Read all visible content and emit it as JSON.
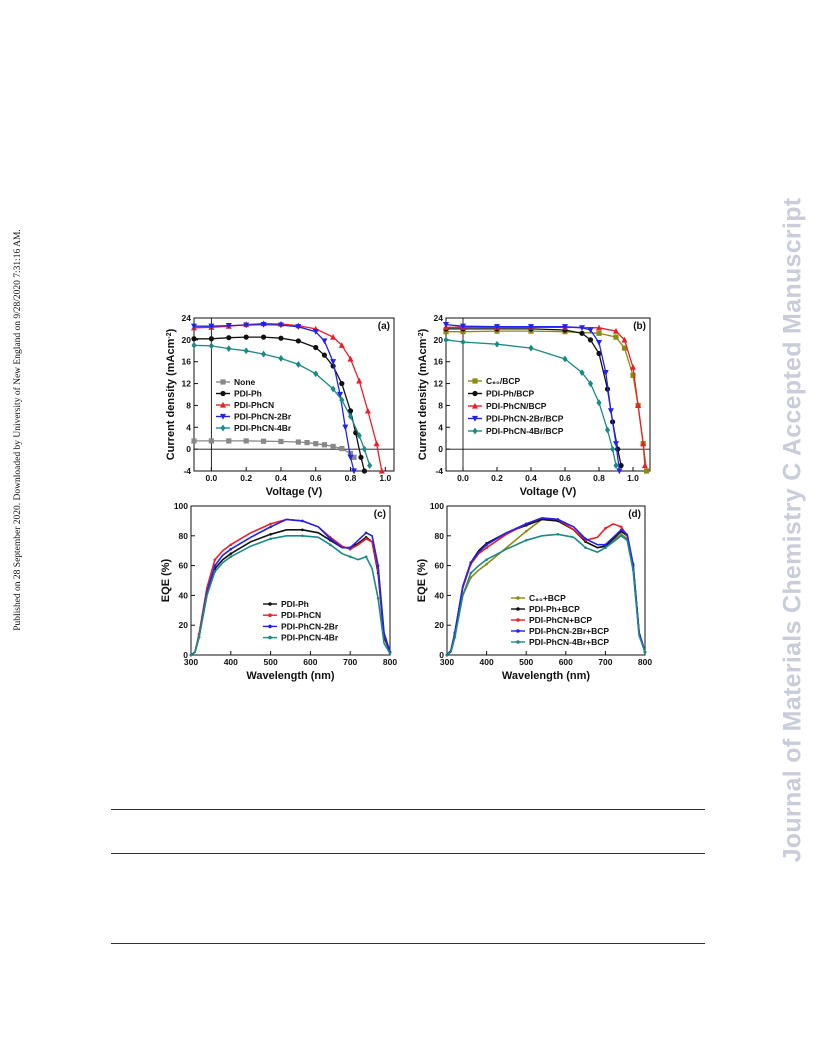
{
  "side_note": "Published on 28 September 2020. Downloaded by University of New England on 9/28/2020 7:31:16 AM.",
  "watermark": "Journal of Materials Chemistry C Accepted Manuscript",
  "colors": {
    "None": "#888888",
    "PDI-Ph": "#111111",
    "PDI-PhCN": "#e8202a",
    "PDI-PhCN-2Br": "#2222ee",
    "PDI-PhCN-4Br": "#1b8a87",
    "C60": "#8c8a12"
  },
  "chart_data": [
    {
      "panel": "(a)",
      "type": "line",
      "xlabel": "Voltage (V)",
      "ylabel": "Current density (mAcm⁻²)",
      "xlim": [
        -0.1,
        1.05
      ],
      "ylim": [
        -4,
        24
      ],
      "xticks": [
        0.0,
        0.2,
        0.4,
        0.6,
        0.8,
        1.0
      ],
      "xtick_labels": [
        "0.0",
        "0.2",
        "0.4",
        "0.6",
        "0.8",
        "1.0"
      ],
      "yticks": [
        -4,
        0,
        4,
        8,
        12,
        16,
        20,
        24
      ],
      "legend_position": "bottom-left",
      "series": [
        {
          "name": "None",
          "color": "#888888",
          "marker": "square",
          "x": [
            -0.1,
            0.0,
            0.1,
            0.2,
            0.3,
            0.4,
            0.5,
            0.55,
            0.6,
            0.65,
            0.7,
            0.75,
            0.8,
            0.82
          ],
          "y": [
            1.5,
            1.5,
            1.5,
            1.5,
            1.45,
            1.4,
            1.3,
            1.2,
            1.0,
            0.8,
            0.5,
            0.1,
            -0.8,
            -1.5
          ]
        },
        {
          "name": "PDI-Ph",
          "color": "#111111",
          "marker": "circle",
          "x": [
            -0.1,
            0.0,
            0.1,
            0.2,
            0.3,
            0.4,
            0.5,
            0.6,
            0.65,
            0.7,
            0.75,
            0.8,
            0.83,
            0.86,
            0.88
          ],
          "y": [
            20.2,
            20.2,
            20.4,
            20.5,
            20.5,
            20.3,
            19.8,
            18.6,
            17.2,
            15.2,
            12.0,
            7.0,
            3.0,
            -1.5,
            -4.0
          ]
        },
        {
          "name": "PDI-PhCN",
          "color": "#e8202a",
          "marker": "triangle-up",
          "x": [
            -0.1,
            0.0,
            0.1,
            0.2,
            0.3,
            0.4,
            0.5,
            0.6,
            0.7,
            0.75,
            0.8,
            0.85,
            0.9,
            0.95,
            0.98
          ],
          "y": [
            22.2,
            22.3,
            22.5,
            22.8,
            23.0,
            22.9,
            22.6,
            22.0,
            20.5,
            19.0,
            16.5,
            12.5,
            7.0,
            1.0,
            -4.0
          ]
        },
        {
          "name": "PDI-PhCN-2Br",
          "color": "#2222ee",
          "marker": "triangle-down",
          "x": [
            -0.1,
            0.0,
            0.1,
            0.2,
            0.3,
            0.4,
            0.5,
            0.6,
            0.65,
            0.7,
            0.74,
            0.77,
            0.8,
            0.82
          ],
          "y": [
            22.5,
            22.5,
            22.6,
            22.7,
            22.8,
            22.7,
            22.4,
            21.5,
            19.8,
            16.0,
            10.0,
            4.0,
            -1.5,
            -4.0
          ]
        },
        {
          "name": "PDI-PhCN-4Br",
          "color": "#1b8a87",
          "marker": "diamond",
          "x": [
            -0.1,
            0.0,
            0.1,
            0.2,
            0.3,
            0.4,
            0.5,
            0.6,
            0.7,
            0.75,
            0.8,
            0.85,
            0.88,
            0.91
          ],
          "y": [
            19.0,
            18.9,
            18.4,
            18.0,
            17.4,
            16.6,
            15.5,
            13.8,
            11.0,
            9.0,
            6.0,
            2.5,
            0.0,
            -3.0
          ]
        }
      ]
    },
    {
      "panel": "(b)",
      "type": "line",
      "xlabel": "Voltage (V)",
      "ylabel": "Current density (mAcm⁻²)",
      "xlim": [
        -0.1,
        1.1
      ],
      "ylim": [
        -4,
        24
      ],
      "xticks": [
        0.0,
        0.2,
        0.4,
        0.6,
        0.8,
        1.0
      ],
      "xtick_labels": [
        "0.0",
        "0.2",
        "0.4",
        "0.6",
        "0.8",
        "1.0"
      ],
      "yticks": [
        -4,
        0,
        4,
        8,
        12,
        16,
        20,
        24
      ],
      "legend_position": "bottom-left",
      "series": [
        {
          "name": "C₆₀/BCP",
          "color": "#8c8a12",
          "marker": "square",
          "x": [
            -0.1,
            0.0,
            0.2,
            0.4,
            0.6,
            0.8,
            0.9,
            0.95,
            1.0,
            1.03,
            1.06,
            1.08
          ],
          "y": [
            21.5,
            21.5,
            21.6,
            21.6,
            21.5,
            21.2,
            20.5,
            18.5,
            13.5,
            8.0,
            1.0,
            -4.0
          ]
        },
        {
          "name": "PDI-Ph/BCP",
          "color": "#111111",
          "marker": "circle",
          "x": [
            -0.1,
            0.0,
            0.2,
            0.4,
            0.6,
            0.7,
            0.75,
            0.8,
            0.85,
            0.88,
            0.91,
            0.93
          ],
          "y": [
            22.0,
            22.0,
            22.0,
            22.0,
            21.8,
            21.2,
            20.0,
            17.5,
            11.0,
            5.0,
            0.0,
            -3.0
          ]
        },
        {
          "name": "PDI-PhCN/BCP",
          "color": "#e8202a",
          "marker": "triangle-up",
          "x": [
            -0.1,
            0.0,
            0.2,
            0.4,
            0.6,
            0.8,
            0.9,
            0.95,
            1.0,
            1.03,
            1.06,
            1.07
          ],
          "y": [
            22.3,
            22.3,
            22.3,
            22.3,
            22.3,
            22.2,
            21.6,
            20.0,
            15.0,
            8.0,
            1.0,
            -3.0
          ]
        },
        {
          "name": "PDI-PhCN-2Br/BCP",
          "color": "#2222ee",
          "marker": "triangle-down",
          "x": [
            -0.1,
            0.0,
            0.2,
            0.4,
            0.6,
            0.7,
            0.75,
            0.8,
            0.84,
            0.87,
            0.9,
            0.92
          ],
          "y": [
            22.8,
            22.5,
            22.4,
            22.4,
            22.4,
            22.2,
            21.8,
            19.5,
            14.0,
            7.0,
            1.0,
            -4.0
          ]
        },
        {
          "name": "PDI-PhCN-4Br/BCP",
          "color": "#1b8a87",
          "marker": "diamond",
          "x": [
            -0.1,
            0.0,
            0.2,
            0.4,
            0.6,
            0.7,
            0.75,
            0.8,
            0.85,
            0.88,
            0.9
          ],
          "y": [
            20.0,
            19.6,
            19.2,
            18.5,
            16.5,
            14.0,
            12.0,
            8.5,
            3.5,
            0.0,
            -3.0
          ]
        }
      ]
    },
    {
      "panel": "(c)",
      "type": "line",
      "xlabel": "Wavelength (nm)",
      "ylabel": "EQE (%)",
      "xlim": [
        300,
        800
      ],
      "ylim": [
        0,
        100
      ],
      "xticks": [
        300,
        400,
        500,
        600,
        700,
        800
      ],
      "xtick_labels": [
        "300",
        "400",
        "500",
        "600",
        "700",
        "800"
      ],
      "yticks": [
        0,
        20,
        40,
        60,
        80,
        100
      ],
      "legend_position": "bottom-center",
      "series": [
        {
          "name": "PDI-Ph",
          "color": "#111111",
          "marker": "none",
          "x": [
            300,
            310,
            320,
            340,
            360,
            380,
            400,
            450,
            500,
            540,
            580,
            620,
            650,
            680,
            700,
            720,
            740,
            755,
            770,
            785,
            800
          ],
          "y": [
            0,
            2,
            12,
            40,
            58,
            64,
            68,
            76,
            81,
            84,
            84,
            82,
            77,
            72,
            72,
            75,
            79,
            76,
            55,
            12,
            2
          ]
        },
        {
          "name": "PDI-PhCN",
          "color": "#e8202a",
          "marker": "none",
          "x": [
            300,
            310,
            320,
            340,
            360,
            380,
            400,
            450,
            500,
            540,
            580,
            620,
            650,
            680,
            700,
            720,
            740,
            755,
            770,
            785,
            800
          ],
          "y": [
            0,
            2,
            14,
            45,
            64,
            70,
            74,
            82,
            88,
            91,
            90,
            86,
            79,
            73,
            71,
            74,
            78,
            76,
            57,
            14,
            2
          ]
        },
        {
          "name": "PDI-PhCN-2Br",
          "color": "#2222ee",
          "marker": "none",
          "x": [
            300,
            310,
            320,
            340,
            360,
            380,
            400,
            450,
            500,
            540,
            580,
            620,
            650,
            680,
            700,
            720,
            740,
            755,
            770,
            785,
            800
          ],
          "y": [
            0,
            2,
            12,
            42,
            60,
            67,
            71,
            79,
            86,
            91,
            90,
            86,
            78,
            72,
            72,
            77,
            82,
            80,
            60,
            15,
            2
          ]
        },
        {
          "name": "PDI-PhCN-4Br",
          "color": "#1b8a87",
          "marker": "none",
          "x": [
            300,
            310,
            320,
            340,
            360,
            380,
            400,
            450,
            500,
            540,
            580,
            620,
            650,
            680,
            700,
            720,
            740,
            755,
            770,
            785,
            800
          ],
          "y": [
            0,
            2,
            12,
            40,
            56,
            62,
            66,
            73,
            78,
            80,
            80,
            79,
            74,
            68,
            66,
            64,
            66,
            58,
            38,
            8,
            1
          ]
        }
      ]
    },
    {
      "panel": "(d)",
      "type": "line",
      "xlabel": "Wavelength (nm)",
      "ylabel": "EQE (%)",
      "xlim": [
        300,
        800
      ],
      "ylim": [
        0,
        100
      ],
      "xticks": [
        300,
        400,
        500,
        600,
        700,
        800
      ],
      "xtick_labels": [
        "300",
        "400",
        "500",
        "600",
        "700",
        "800"
      ],
      "yticks": [
        0,
        20,
        40,
        60,
        80,
        100
      ],
      "legend_position": "bottom-center",
      "series": [
        {
          "name": "C₆₀+BCP",
          "color": "#8c8a12",
          "marker": "none",
          "x": [
            300,
            310,
            320,
            340,
            360,
            380,
            400,
            450,
            500,
            540,
            580,
            620,
            650,
            680,
            700,
            720,
            740,
            755,
            770,
            785,
            800
          ],
          "y": [
            0,
            3,
            14,
            40,
            52,
            57,
            61,
            72,
            83,
            91,
            90,
            84,
            76,
            72,
            73,
            77,
            81,
            78,
            58,
            14,
            2
          ]
        },
        {
          "name": "PDI-Ph+BCP",
          "color": "#111111",
          "marker": "none",
          "x": [
            300,
            310,
            320,
            340,
            360,
            380,
            400,
            450,
            500,
            540,
            580,
            620,
            650,
            680,
            700,
            720,
            740,
            755,
            770,
            785,
            800
          ],
          "y": [
            0,
            3,
            15,
            46,
            62,
            70,
            75,
            82,
            87,
            91,
            90,
            84,
            76,
            72,
            73,
            78,
            83,
            80,
            60,
            15,
            2
          ]
        },
        {
          "name": "PDI-PhCN+BCP",
          "color": "#e8202a",
          "marker": "none",
          "x": [
            300,
            310,
            320,
            340,
            360,
            380,
            400,
            450,
            500,
            540,
            580,
            620,
            650,
            680,
            700,
            720,
            740,
            755,
            770,
            785,
            800
          ],
          "y": [
            0,
            3,
            15,
            45,
            61,
            68,
            72,
            81,
            88,
            92,
            91,
            84,
            77,
            79,
            85,
            88,
            86,
            80,
            60,
            15,
            2
          ]
        },
        {
          "name": "PDI-PhCN-2Br+BCP",
          "color": "#2222ee",
          "marker": "none",
          "x": [
            300,
            310,
            320,
            340,
            360,
            380,
            400,
            450,
            500,
            540,
            580,
            620,
            650,
            680,
            700,
            720,
            740,
            755,
            770,
            785,
            800
          ],
          "y": [
            0,
            3,
            15,
            46,
            62,
            69,
            74,
            82,
            88,
            92,
            91,
            86,
            78,
            74,
            74,
            79,
            84,
            81,
            61,
            15,
            2
          ]
        },
        {
          "name": "PDI-PhCN-4Br+BCP",
          "color": "#1b8a87",
          "marker": "none",
          "x": [
            300,
            310,
            320,
            340,
            360,
            380,
            400,
            450,
            500,
            540,
            580,
            620,
            650,
            680,
            700,
            720,
            740,
            755,
            770,
            785,
            800
          ],
          "y": [
            0,
            2,
            12,
            40,
            55,
            60,
            64,
            71,
            77,
            80,
            81,
            79,
            72,
            69,
            72,
            76,
            80,
            77,
            57,
            13,
            2
          ]
        }
      ]
    }
  ]
}
